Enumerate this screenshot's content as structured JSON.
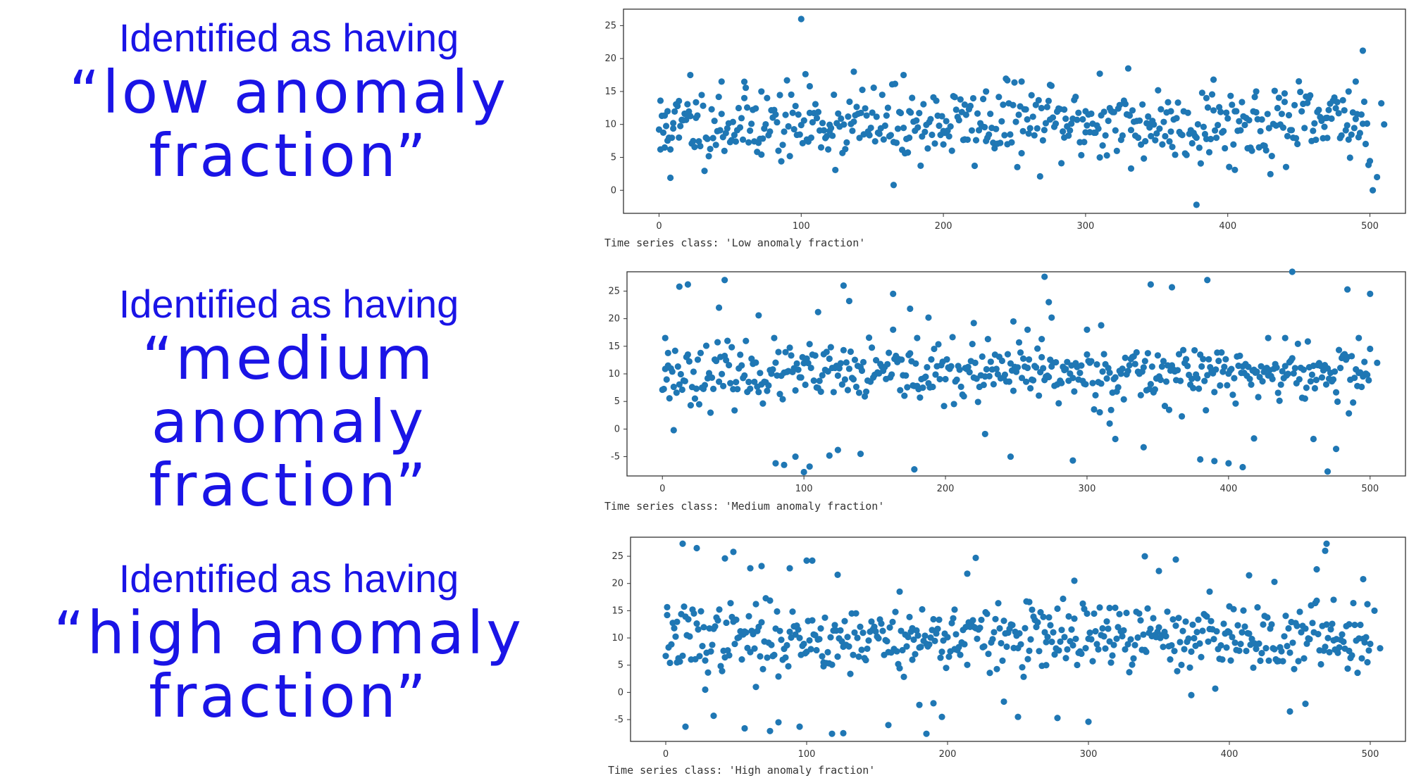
{
  "labels": [
    {
      "line1": "Identified as having",
      "line2": "“low anomaly",
      "line3": "fraction”"
    },
    {
      "line1": "Identified as having",
      "line2": "“medium anomaly",
      "line3": "fraction”"
    },
    {
      "line1": "Identified as having",
      "line2": "“high anomaly",
      "line3": "fraction”"
    }
  ],
  "colors": {
    "label_text": "#1a14e6",
    "point": "#1f77b4",
    "axis": "#333333"
  },
  "chart_data": [
    {
      "type": "scatter",
      "caption": "Time series class: 'Low anomaly fraction'",
      "xlim": [
        -25,
        525
      ],
      "ylim": [
        -3.5,
        27.5
      ],
      "xticks": [
        0,
        100,
        200,
        300,
        400,
        500
      ],
      "yticks": [
        0,
        5,
        10,
        15,
        20,
        25
      ],
      "series": [
        {
          "name": "",
          "points": [
            [
              1,
              6.2
            ],
            [
              4,
              6.5
            ],
            [
              6,
              12
            ],
            [
              8,
              1.9
            ],
            [
              10,
              10.2
            ],
            [
              14,
              8
            ],
            [
              20,
              11.6
            ],
            [
              22,
              17.5
            ],
            [
              26,
              11
            ],
            [
              44,
              16.5
            ],
            [
              60,
              14
            ],
            [
              72,
              15
            ],
            [
              100,
              26
            ],
            [
              106,
              15.8
            ],
            [
              120,
              9
            ],
            [
              137,
              18
            ],
            [
              165,
              0.8
            ],
            [
              172,
              17.5
            ],
            [
              176,
              12
            ],
            [
              200,
              9
            ],
            [
              215,
              13
            ],
            [
              230,
              15
            ],
            [
              245,
              16.7
            ],
            [
              255,
              16.5
            ],
            [
              275,
              16
            ],
            [
              285,
              8
            ],
            [
              300,
              12
            ],
            [
              310,
              17.7
            ],
            [
              330,
              18.5
            ],
            [
              332,
              3.3
            ],
            [
              345,
              10
            ],
            [
              360,
              12
            ],
            [
              378,
              -2.2
            ],
            [
              385,
              14
            ],
            [
              390,
              16.8
            ],
            [
              405,
              12
            ],
            [
              420,
              15
            ],
            [
              440,
              14.7
            ],
            [
              470,
              11
            ],
            [
              485,
              15
            ],
            [
              490,
              16.5
            ],
            [
              495,
              21.2
            ],
            [
              502,
              0
            ],
            [
              505,
              2
            ],
            [
              508,
              13.2
            ],
            [
              510,
              10
            ]
          ]
        }
      ]
    },
    {
      "type": "scatter",
      "caption": "Time series class: 'Medium anomaly fraction'",
      "xlim": [
        -25,
        525
      ],
      "ylim": [
        -8.5,
        28.5
      ],
      "xticks": [
        0,
        100,
        200,
        300,
        400,
        500
      ],
      "yticks": [
        -5,
        0,
        5,
        10,
        15,
        20,
        25
      ],
      "series": [
        {
          "name": "",
          "points": [
            [
              2,
              16.5
            ],
            [
              4,
              11.5
            ],
            [
              8,
              -0.2
            ],
            [
              12,
              25.8
            ],
            [
              18,
              26.2
            ],
            [
              40,
              22
            ],
            [
              44,
              27
            ],
            [
              68,
              20.6
            ],
            [
              80,
              -6.2
            ],
            [
              86,
              -6.5
            ],
            [
              94,
              -5
            ],
            [
              100,
              -7.8
            ],
            [
              104,
              -6.8
            ],
            [
              110,
              21.2
            ],
            [
              118,
              -4.8
            ],
            [
              124,
              -3.8
            ],
            [
              128,
              26
            ],
            [
              132,
              23.2
            ],
            [
              140,
              -4.5
            ],
            [
              163,
              24.5
            ],
            [
              175,
              21.8
            ],
            [
              178,
              -7.3
            ],
            [
              180,
              16.5
            ],
            [
              188,
              20.2
            ],
            [
              220,
              19.2
            ],
            [
              228,
              -0.9
            ],
            [
              246,
              -5
            ],
            [
              248,
              19.5
            ],
            [
              258,
              18
            ],
            [
              268,
              16.3
            ],
            [
              270,
              27.6
            ],
            [
              273,
              23
            ],
            [
              275,
              20.2
            ],
            [
              290,
              -5.7
            ],
            [
              300,
              18
            ],
            [
              310,
              18.8
            ],
            [
              316,
              1
            ],
            [
              320,
              -1.8
            ],
            [
              340,
              -3.3
            ],
            [
              345,
              26.2
            ],
            [
              360,
              25.7
            ],
            [
              380,
              -5.5
            ],
            [
              385,
              27
            ],
            [
              390,
              -5.8
            ],
            [
              400,
              -6.2
            ],
            [
              410,
              -6.9
            ],
            [
              418,
              -1.7
            ],
            [
              428,
              16.5
            ],
            [
              440,
              16.5
            ],
            [
              445,
              28.5
            ],
            [
              460,
              -1.8
            ],
            [
              470,
              -7.7
            ],
            [
              476,
              -3.6
            ],
            [
              484,
              25.3
            ],
            [
              492,
              16.5
            ],
            [
              500,
              24.5
            ],
            [
              505,
              12
            ]
          ]
        }
      ]
    },
    {
      "type": "scatter",
      "caption": "Time series class: 'High anomaly fraction'",
      "xlim": [
        -25,
        525
      ],
      "ylim": [
        -9,
        28.5
      ],
      "xticks": [
        0,
        100,
        200,
        300,
        400,
        500
      ],
      "yticks": [
        -5,
        0,
        5,
        10,
        15,
        20,
        25
      ],
      "series": [
        {
          "name": "",
          "points": [
            [
              1,
              14.2
            ],
            [
              8,
              5.5
            ],
            [
              12,
              27.3
            ],
            [
              14,
              -6.3
            ],
            [
              22,
              26.5
            ],
            [
              28,
              0.5
            ],
            [
              34,
              -4.3
            ],
            [
              42,
              24.6
            ],
            [
              48,
              25.8
            ],
            [
              56,
              -6.6
            ],
            [
              60,
              22.8
            ],
            [
              64,
              1
            ],
            [
              68,
              23.2
            ],
            [
              74,
              -7.1
            ],
            [
              80,
              -5.5
            ],
            [
              88,
              22.8
            ],
            [
              95,
              -6.3
            ],
            [
              100,
              24.2
            ],
            [
              104,
              24.2
            ],
            [
              112,
              5.5
            ],
            [
              118,
              -7.6
            ],
            [
              122,
              21.6
            ],
            [
              126,
              -7.5
            ],
            [
              158,
              -6
            ],
            [
              166,
              18.5
            ],
            [
              175,
              6
            ],
            [
              180,
              -2.3
            ],
            [
              185,
              -7.6
            ],
            [
              190,
              -2
            ],
            [
              196,
              -4.5
            ],
            [
              205,
              15.2
            ],
            [
              214,
              21.8
            ],
            [
              220,
              24.7
            ],
            [
              240,
              -1.7
            ],
            [
              250,
              -4.5
            ],
            [
              258,
              16.6
            ],
            [
              270,
              5
            ],
            [
              278,
              -4.7
            ],
            [
              290,
              20.5
            ],
            [
              300,
              -5.4
            ],
            [
              315,
              15.5
            ],
            [
              340,
              25
            ],
            [
              350,
              22.3
            ],
            [
              362,
              24.4
            ],
            [
              373,
              -0.5
            ],
            [
              386,
              18.5
            ],
            [
              400,
              15.8
            ],
            [
              414,
              21.5
            ],
            [
              432,
              20.3
            ],
            [
              443,
              -3.5
            ],
            [
              454,
              -2.1
            ],
            [
              462,
              22.6
            ],
            [
              468,
              26
            ],
            [
              469,
              27.3
            ],
            [
              474,
              17
            ],
            [
              485,
              12.5
            ],
            [
              495,
              20.8
            ],
            [
              498,
              16.2
            ],
            [
              503,
              15
            ],
            [
              507,
              8.1
            ]
          ]
        }
      ]
    }
  ]
}
